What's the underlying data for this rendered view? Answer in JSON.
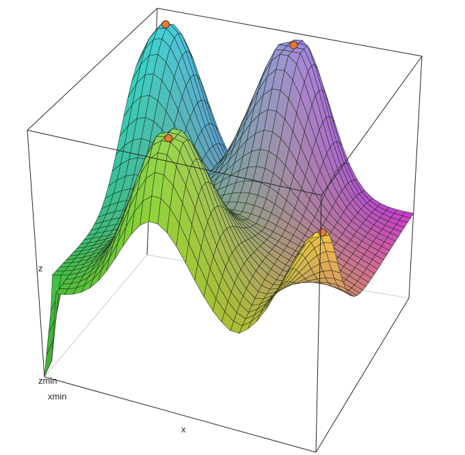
{
  "chart_data": {
    "type": "surface",
    "title": "",
    "axis_labels": {
      "x": "x",
      "z": "z",
      "xmin": "xmin",
      "zmin": "zmin"
    },
    "grid": false,
    "mesh": true,
    "colors": {
      "front_left": "#4fe03a",
      "front_right": "#ffd83a",
      "back_left": "#30d8f0",
      "back_right": "#f040f0",
      "marker": "#e07a3a",
      "box": "#222222"
    },
    "surface_peaks": [
      {
        "x": 0.42,
        "y": 0.15,
        "z": 0.95
      },
      {
        "x": 1.0,
        "y": 0.02,
        "z": 0.82
      },
      {
        "x": 0.08,
        "y": 0.9,
        "z": 0.98
      },
      {
        "x": 0.55,
        "y": 0.92,
        "z": 1.0
      }
    ]
  }
}
